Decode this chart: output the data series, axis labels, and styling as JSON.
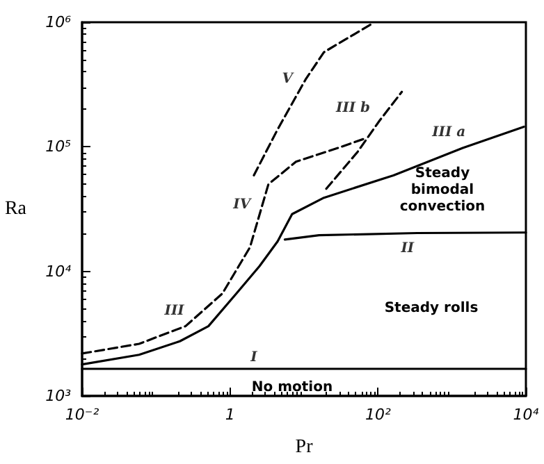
{
  "chart_data": {
    "type": "line",
    "xlabel": "Pr",
    "ylabel": "Ra",
    "log": "xy",
    "grid": false,
    "marker": "none",
    "xlim": [
      0.01,
      10000
    ],
    "ylim": [
      1000,
      1000000
    ],
    "xticks": [
      {
        "value": 0.01,
        "label": "10⁻²"
      },
      1,
      {
        "value": 100,
        "label": "10²"
      },
      {
        "value": 10000,
        "label": "10⁴"
      }
    ],
    "yticks": [
      {
        "value": 1000,
        "label": "10³"
      },
      {
        "value": 10000,
        "label": "10⁴"
      },
      {
        "value": 100000,
        "label": "10⁵"
      },
      {
        "value": 1000000,
        "label": "10⁶"
      }
    ],
    "series": [
      {
        "color": "#000000",
        "line_style": "solid",
        "x": [
          0.01,
          10000
        ],
        "values": [
          1650,
          1650
        ]
      },
      {
        "color": "#000000",
        "line_style": "solid",
        "x": [
          0.01,
          0.059,
          0.21,
          0.51,
          1.22,
          2.5,
          4.4,
          6.9,
          18.6,
          162,
          1400,
          9400
        ],
        "values": [
          1790,
          2140,
          2750,
          3630,
          6650,
          11000,
          17400,
          28800,
          39000,
          59000,
          98000,
          145000
        ]
      },
      {
        "color": "#000000",
        "line_style": "solid",
        "x": [
          5.5,
          16,
          340,
          10000
        ],
        "values": [
          18000,
          19500,
          20300,
          20500
        ]
      },
      {
        "color": "#000000",
        "line_style": "dashed",
        "x": [
          0.01,
          0.059,
          0.25,
          0.79,
          1.86,
          3.3,
          7.8,
          29,
          68
        ],
        "values": [
          2190,
          2620,
          3630,
          6650,
          15600,
          50000,
          76000,
          98000,
          117000
        ]
      },
      {
        "color": "#000000",
        "line_style": "dashed",
        "x": [
          20,
          53,
          105,
          210
        ],
        "values": [
          46000,
          91000,
          162000,
          276000
        ]
      },
      {
        "color": "#000000",
        "line_style": "dashed",
        "x": [
          2.1,
          4.4,
          10.5,
          18.6,
          79
        ],
        "values": [
          59000,
          138000,
          347000,
          575000,
          955000
        ]
      }
    ],
    "annotations": [
      {
        "text": "V",
        "x": 10.5,
        "y": 347000
      },
      {
        "text": "III b",
        "x": 105,
        "y": 162000
      },
      {
        "text": "III a",
        "x": 1400,
        "y": 98000
      },
      {
        "text": "IV",
        "x": 3.3,
        "y": 50000
      },
      {
        "text": "II",
        "x": 340,
        "y": 20300
      },
      {
        "text": "III",
        "x": 0.25,
        "y": 3630
      },
      {
        "text": "I",
        "x": 2.1,
        "y": 1650
      },
      "Steady\nbimodal\nconvection",
      "Steady rolls",
      "No motion"
    ]
  }
}
